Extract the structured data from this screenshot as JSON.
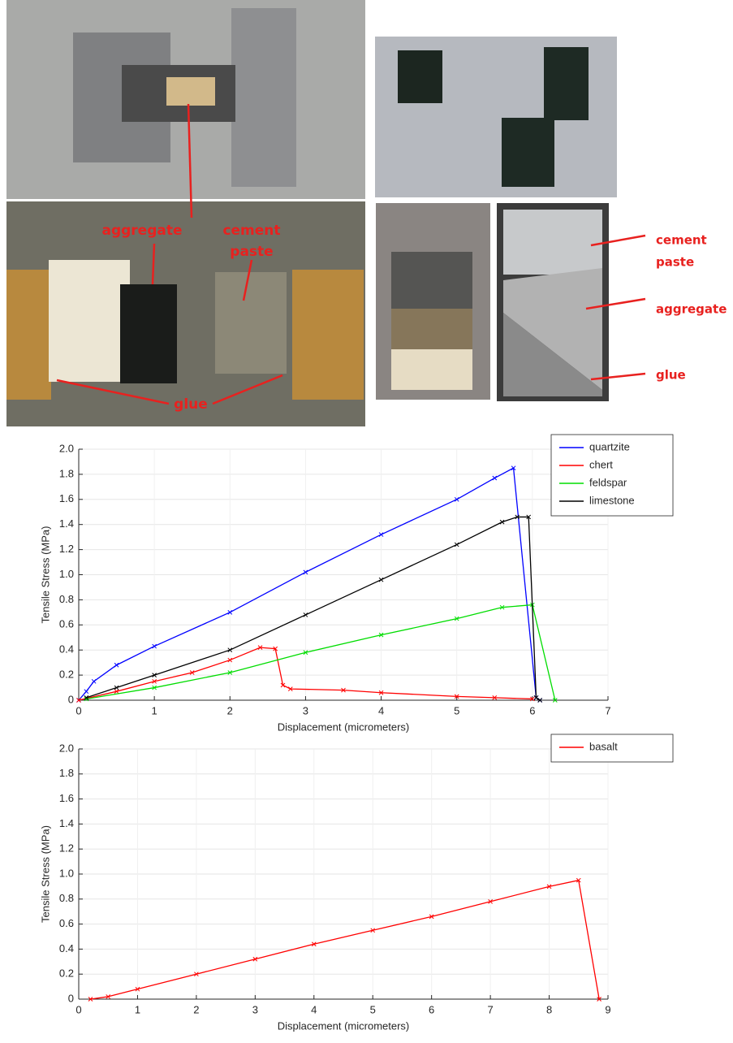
{
  "photos": {
    "annotations": [
      "aggregate",
      "cement",
      "paste",
      "glue",
      "cement",
      "paste",
      "aggregate",
      "glue"
    ]
  },
  "chart_data": [
    {
      "type": "line",
      "xlabel": "Displacement (micrometers)",
      "ylabel": "Tensile Stress (MPa)",
      "xlim": [
        0,
        7
      ],
      "ylim": [
        0,
        2.0
      ],
      "xticks": [
        0,
        1,
        2,
        3,
        4,
        5,
        6,
        7
      ],
      "yticks": [
        0,
        0.2,
        0.4,
        0.6,
        0.8,
        {
          "value": 1,
          "label": "1.0"
        },
        1.2,
        1.4,
        1.6,
        1.8,
        {
          "value": 2,
          "label": "2.0"
        }
      ],
      "grid": true,
      "legend": "upper right",
      "series": [
        {
          "name": "quartzite",
          "color": "#0000ff",
          "x": [
            0,
            0.1,
            0.2,
            0.5,
            1,
            2,
            3,
            4,
            5,
            5.5,
            5.75,
            6.05,
            6.1
          ],
          "values": [
            0,
            0.07,
            0.15,
            0.28,
            0.43,
            0.7,
            1.02,
            1.32,
            1.6,
            1.77,
            1.85,
            0.02,
            0
          ]
        },
        {
          "name": "chert",
          "color": "#ff0000",
          "x": [
            0,
            0.5,
            1,
            1.5,
            2,
            2.4,
            2.6,
            2.7,
            2.8,
            3.5,
            4,
            5,
            5.5,
            6
          ],
          "values": [
            0,
            0.07,
            0.15,
            0.22,
            0.32,
            0.42,
            0.41,
            0.12,
            0.09,
            0.08,
            0.06,
            0.03,
            0.02,
            0.01
          ]
        },
        {
          "name": "feldspar",
          "color": "#00dd00",
          "x": [
            0.1,
            1,
            2,
            3,
            4,
            5,
            5.6,
            6,
            6.3
          ],
          "values": [
            0.01,
            0.1,
            0.22,
            0.38,
            0.52,
            0.65,
            0.74,
            0.76,
            0
          ]
        },
        {
          "name": "limestone",
          "color": "#000000",
          "x": [
            0.1,
            0.5,
            1,
            2,
            3,
            4,
            5,
            5.6,
            5.8,
            5.95,
            6.05,
            6.1
          ],
          "values": [
            0.02,
            0.1,
            0.2,
            0.4,
            0.68,
            0.96,
            1.24,
            1.42,
            1.46,
            1.46,
            0.02,
            0
          ]
        }
      ]
    },
    {
      "type": "line",
      "xlabel": "Displacement (micrometers)",
      "ylabel": "Tensile Stress (MPa)",
      "xlim": [
        0,
        9
      ],
      "ylim": [
        0,
        2.0
      ],
      "xticks": [
        0,
        1,
        2,
        3,
        4,
        5,
        6,
        7,
        8,
        9
      ],
      "yticks": [
        0,
        0.2,
        0.4,
        0.6,
        0.8,
        {
          "value": 1,
          "label": "1.0"
        },
        1.2,
        1.4,
        1.6,
        1.8,
        {
          "value": 2,
          "label": "2.0"
        }
      ],
      "grid": true,
      "legend": "upper right",
      "series": [
        {
          "name": "basalt",
          "color": "#ff0000",
          "x": [
            0.2,
            0.5,
            1,
            2,
            3,
            4,
            5,
            6,
            7,
            8,
            8.5,
            8.85
          ],
          "values": [
            0,
            0.02,
            0.08,
            0.2,
            0.32,
            0.44,
            0.55,
            0.66,
            0.78,
            0.9,
            0.95,
            0
          ]
        }
      ]
    }
  ]
}
